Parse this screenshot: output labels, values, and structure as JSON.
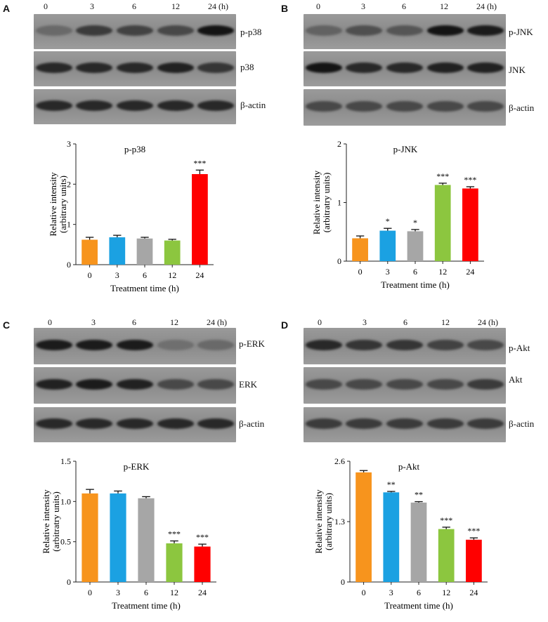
{
  "panels": [
    {
      "letter": "A",
      "time_labels": [
        "0",
        "3",
        "6",
        "12",
        "24 (h)"
      ],
      "blots": [
        "p-p38",
        "p38",
        "β-actin"
      ]
    },
    {
      "letter": "B",
      "time_labels": [
        "0",
        "3",
        "6",
        "12",
        "24 (h)"
      ],
      "blots": [
        "p-JNK",
        "JNK",
        "β-actin"
      ]
    },
    {
      "letter": "C",
      "time_labels": [
        "0",
        "3",
        "6",
        "12",
        "24 (h)"
      ],
      "blots": [
        "p-ERK",
        "ERK",
        "β-actin"
      ]
    },
    {
      "letter": "D",
      "time_labels": [
        "0",
        "3",
        "6",
        "12",
        "24 (h)"
      ],
      "blots": [
        "p-Akt",
        "Akt",
        "β-actin"
      ]
    }
  ],
  "band_intensity": [
    [
      [
        0.35,
        0.7,
        0.65,
        0.6,
        1.0
      ],
      [
        0.85,
        0.85,
        0.85,
        0.9,
        0.75
      ],
      [
        0.85,
        0.85,
        0.85,
        0.85,
        0.85
      ]
    ],
    [
      [
        0.4,
        0.55,
        0.5,
        1.0,
        0.95
      ],
      [
        1.0,
        0.85,
        0.85,
        0.9,
        0.9
      ],
      [
        0.6,
        0.6,
        0.6,
        0.6,
        0.6
      ]
    ],
    [
      [
        0.95,
        0.95,
        0.95,
        0.3,
        0.35
      ],
      [
        0.9,
        0.95,
        0.9,
        0.6,
        0.6
      ],
      [
        0.85,
        0.85,
        0.85,
        0.85,
        0.85
      ]
    ],
    [
      [
        0.85,
        0.75,
        0.75,
        0.65,
        0.6
      ],
      [
        0.6,
        0.6,
        0.6,
        0.6,
        0.7
      ],
      [
        0.7,
        0.7,
        0.7,
        0.7,
        0.7
      ]
    ]
  ],
  "bar_colors": [
    "#f7941d",
    "#1ba1e2",
    "#a6a6a6",
    "#8cc63f",
    "#ff0000"
  ],
  "chart_data": [
    {
      "type": "bar",
      "title": "p-p38",
      "xlabel": "Treatment time (h)",
      "ylabel": [
        "Relative intensity",
        "(arbitrary units)"
      ],
      "categories": [
        "0",
        "3",
        "6",
        "12",
        "24"
      ],
      "values": [
        0.62,
        0.68,
        0.65,
        0.6,
        2.25
      ],
      "errors": [
        0.06,
        0.05,
        0.03,
        0.03,
        0.1
      ],
      "significance": [
        "",
        "",
        "",
        "",
        "***"
      ],
      "ylim": [
        0,
        3
      ],
      "yticks": [
        "0",
        "1",
        "2",
        "3"
      ]
    },
    {
      "type": "bar",
      "title": "p-JNK",
      "xlabel": "Treatment time (h)",
      "ylabel": [
        "Relative intensity",
        "(arbitratry units)"
      ],
      "categories": [
        "0",
        "3",
        "6",
        "12",
        "24"
      ],
      "values": [
        0.39,
        0.52,
        0.51,
        1.3,
        1.24
      ],
      "errors": [
        0.04,
        0.04,
        0.03,
        0.03,
        0.03
      ],
      "significance": [
        "",
        "*",
        "*",
        "***",
        "***"
      ],
      "ylim": [
        0,
        2
      ],
      "yticks": [
        "0",
        "1",
        "2"
      ]
    },
    {
      "type": "bar",
      "title": "p-ERK",
      "xlabel": "Treatment time (h)",
      "ylabel": [
        "Relative intensity",
        "(arbitratry units)"
      ],
      "categories": [
        "0",
        "3",
        "6",
        "12",
        "24"
      ],
      "values": [
        1.1,
        1.1,
        1.04,
        0.48,
        0.44
      ],
      "errors": [
        0.05,
        0.03,
        0.02,
        0.03,
        0.03
      ],
      "significance": [
        "",
        "",
        "",
        "***",
        "***"
      ],
      "ylim": [
        0,
        1.5
      ],
      "yticks": [
        "0",
        "0.5",
        "1.0",
        "1.5"
      ]
    },
    {
      "type": "bar",
      "title": "p-Akt",
      "xlabel": "Treatment time (h)",
      "ylabel": [
        "Relative intensity",
        "(arbitrary units)"
      ],
      "categories": [
        "0",
        "3",
        "6",
        "12",
        "24"
      ],
      "values": [
        2.36,
        1.93,
        1.71,
        1.14,
        0.91
      ],
      "errors": [
        0.04,
        0.02,
        0.02,
        0.04,
        0.04
      ],
      "significance": [
        "",
        "**",
        "**",
        "***",
        "***"
      ],
      "ylim": [
        0,
        2.6
      ],
      "yticks": [
        "0",
        "1.3",
        "2.6"
      ]
    }
  ]
}
